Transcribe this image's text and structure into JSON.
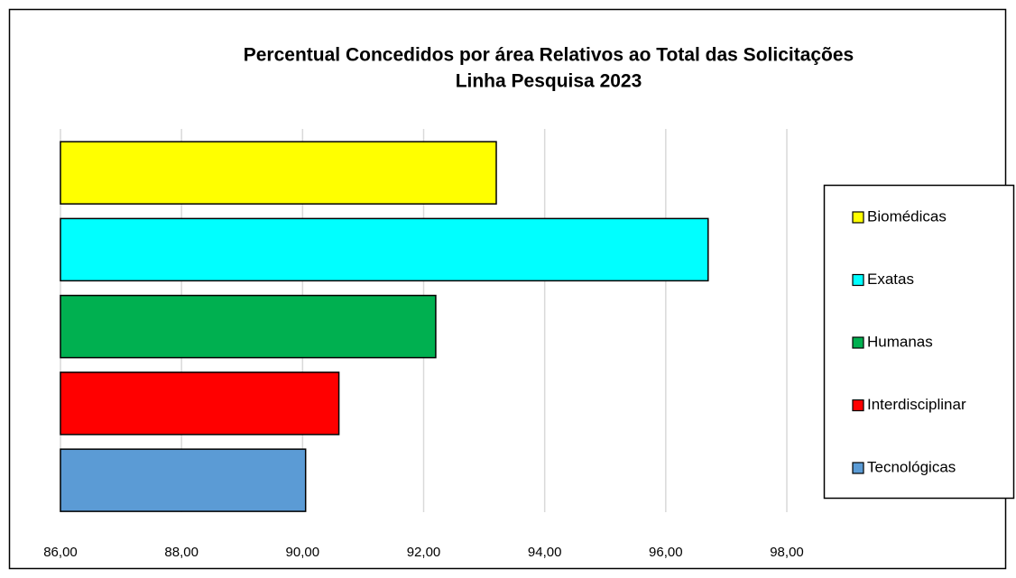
{
  "chart_data": {
    "type": "barh",
    "title": "Percentual Concedidos por área Relativos ao Total das Solicitações",
    "subtitle": "Linha Pesquisa 2023",
    "categories": [
      "Biomédicas",
      "Exatas",
      "Humanas",
      "Interdisciplinar",
      "Tecnológicas"
    ],
    "values": [
      93.2,
      96.7,
      92.2,
      90.6,
      90.05
    ],
    "colors": [
      "#ffff00",
      "#00ffff",
      "#00b050",
      "#ff0000",
      "#5b9bd5"
    ],
    "xlim": [
      86,
      98
    ],
    "xticks": [
      {
        "value": 86,
        "label": "86,00"
      },
      {
        "value": 88,
        "label": "88,00"
      },
      {
        "value": 90,
        "label": "90,00"
      },
      {
        "value": 92,
        "label": "92,00"
      },
      {
        "value": 94,
        "label": "94,00"
      },
      {
        "value": 96,
        "label": "96,00"
      },
      {
        "value": 98,
        "label": "98,00"
      }
    ],
    "grid": true,
    "legend": "right"
  }
}
